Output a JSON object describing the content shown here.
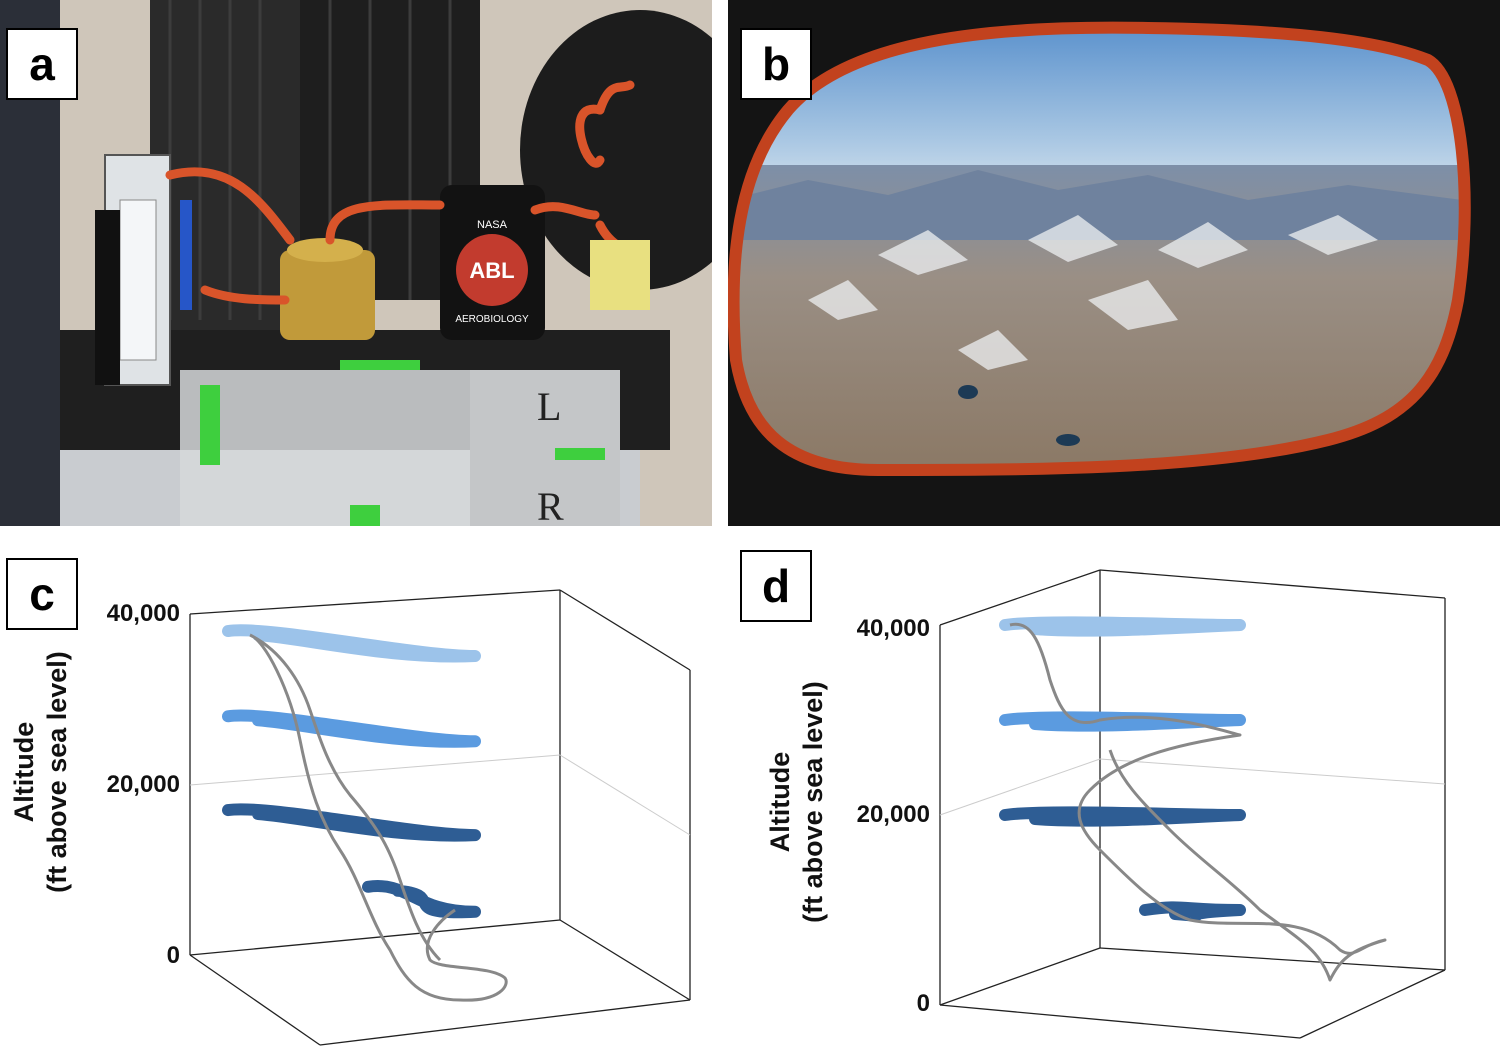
{
  "figure": {
    "panels": [
      {
        "letter": "a",
        "kind": "photo",
        "description_words": [
          "NASA",
          "ABL",
          "AEROBIOLOGY"
        ]
      },
      {
        "letter": "b",
        "kind": "photo"
      },
      {
        "letter": "c",
        "kind": "chart"
      },
      {
        "letter": "d",
        "kind": "chart"
      }
    ]
  },
  "photo_a": {
    "badge_top": "NASA",
    "badge_logo": "ABL",
    "badge_bottom": "AEROBIOLOGY",
    "sign_letters": [
      "L",
      "R"
    ]
  },
  "colors": {
    "light_blue": "#9cc3ea",
    "mid_blue": "#5b9be0",
    "dark_blue": "#2e5d94",
    "track_gray": "#888888"
  },
  "chart_data": [
    {
      "panel": "c",
      "type": "line",
      "ylabel_line1": "Altitude",
      "ylabel_line2": "(ft above sea level)",
      "z_ticks": [
        "40,000",
        "20,000",
        "0"
      ],
      "zlim": [
        0,
        40000
      ],
      "series": [
        {
          "color": "#9cc3ea",
          "altitude": 38000
        },
        {
          "color": "#5b9be0",
          "altitude": 28000
        },
        {
          "color": "#2e5d94",
          "altitude": 17000
        },
        {
          "color": "#2e5d94",
          "altitude": 8000
        }
      ]
    },
    {
      "panel": "d",
      "type": "line",
      "ylabel_line1": "Altitude",
      "ylabel_line2": "(ft above sea level)",
      "z_ticks": [
        "40,000",
        "20,000",
        "0"
      ],
      "zlim": [
        0,
        40000
      ],
      "series": [
        {
          "color": "#9cc3ea",
          "altitude": 40000
        },
        {
          "color": "#5b9be0",
          "altitude": 30000
        },
        {
          "color": "#2e5d94",
          "altitude": 20000
        },
        {
          "color": "#2e5d94",
          "altitude": 10000
        }
      ]
    }
  ]
}
